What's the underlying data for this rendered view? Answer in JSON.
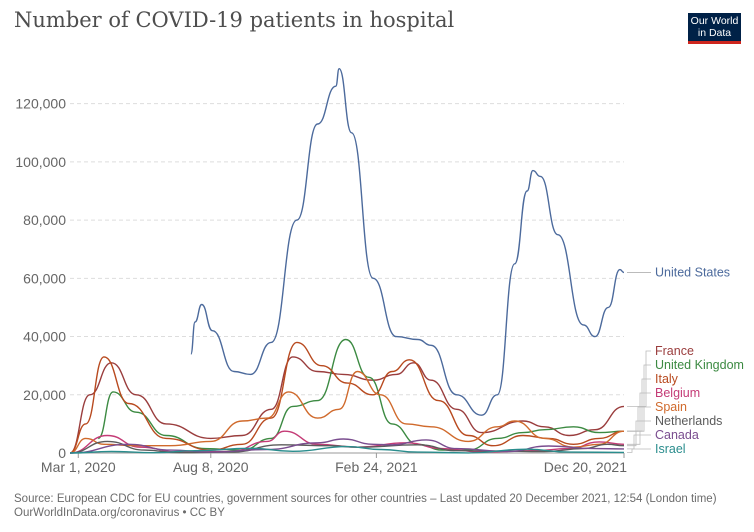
{
  "header": {
    "title": "Number of COVID-19 patients in hospital",
    "logo_line1": "Our World",
    "logo_line2": "in Data"
  },
  "footer": {
    "source": "Source: European CDC for EU countries, government sources for other countries – Last updated 20 December 2021, 12:54 (London time)",
    "url": "OurWorldInData.org/coronavirus • CC BY"
  },
  "chart_data": {
    "type": "line",
    "title": "Number of COVID-19 patients in hospital",
    "xlabel": "",
    "ylabel": "",
    "xlim": [
      "2020-02-20",
      "2021-12-20"
    ],
    "ylim": [
      0,
      135000
    ],
    "grid": true,
    "legend_placement": "right (labels at line ends)",
    "x_tick_labels": [
      "Mar 1, 2020",
      "Aug 8, 2020",
      "Feb 24, 2021",
      "Dec 20, 2021"
    ],
    "x_tick_dates": [
      "2020-03-01",
      "2020-08-08",
      "2021-02-24",
      "2021-12-20"
    ],
    "y_tick_labels": [
      "0",
      "20,000",
      "40,000",
      "60,000",
      "80,000",
      "100,000",
      "120,000"
    ],
    "y_tick_values": [
      0,
      20000,
      40000,
      60000,
      80000,
      100000,
      120000
    ],
    "series": [
      {
        "name": "United States",
        "color": "#4c6a9c",
        "x": [
          "2020-07-15",
          "2020-07-20",
          "2020-07-28",
          "2020-08-10",
          "2020-09-05",
          "2020-09-25",
          "2020-10-20",
          "2020-11-20",
          "2020-12-15",
          "2021-01-06",
          "2021-01-10",
          "2021-01-25",
          "2021-02-20",
          "2021-03-20",
          "2021-04-15",
          "2021-05-01",
          "2021-06-01",
          "2021-07-01",
          "2021-07-20",
          "2021-08-10",
          "2021-08-25",
          "2021-09-01",
          "2021-09-10",
          "2021-10-01",
          "2021-11-01",
          "2021-11-15",
          "2021-12-01",
          "2021-12-15",
          "2021-12-20"
        ],
        "y": [
          34000,
          45000,
          51000,
          42000,
          28000,
          27000,
          38000,
          80000,
          113000,
          126000,
          132000,
          110000,
          60000,
          40000,
          39000,
          37000,
          20000,
          13000,
          20000,
          65000,
          90000,
          97000,
          95000,
          75000,
          44000,
          40000,
          50000,
          63000,
          62000
        ]
      },
      {
        "name": "France",
        "color": "#9a3d3d",
        "x": [
          "2020-02-20",
          "2020-03-15",
          "2020-04-10",
          "2020-05-10",
          "2020-06-15",
          "2020-08-08",
          "2020-09-15",
          "2020-10-20",
          "2020-11-15",
          "2020-12-15",
          "2021-01-15",
          "2021-02-20",
          "2021-03-20",
          "2021-04-10",
          "2021-05-01",
          "2021-06-01",
          "2021-07-01",
          "2021-08-20",
          "2021-09-15",
          "2021-10-15",
          "2021-11-15",
          "2021-12-20"
        ],
        "y": [
          0,
          20000,
          31000,
          20000,
          10000,
          5000,
          6000,
          15000,
          33000,
          28000,
          27000,
          25000,
          27000,
          31000,
          25000,
          15000,
          7000,
          11000,
          9000,
          6000,
          8000,
          16000
        ]
      },
      {
        "name": "United Kingdom",
        "color": "#3c8a42",
        "x": [
          "2020-03-25",
          "2020-04-12",
          "2020-05-10",
          "2020-06-15",
          "2020-08-01",
          "2020-09-15",
          "2020-10-20",
          "2020-11-15",
          "2020-12-15",
          "2021-01-18",
          "2021-02-15",
          "2021-03-15",
          "2021-04-15",
          "2021-05-15",
          "2021-06-15",
          "2021-07-20",
          "2021-08-20",
          "2021-09-15",
          "2021-10-20",
          "2021-11-20",
          "2021-12-20"
        ],
        "y": [
          5000,
          21000,
          14000,
          6000,
          1500,
          1000,
          5000,
          16000,
          18000,
          39000,
          26000,
          10000,
          3000,
          1000,
          1000,
          5000,
          7000,
          8000,
          9000,
          7000,
          7500
        ]
      },
      {
        "name": "Italy",
        "color": "#b84a1f",
        "x": [
          "2020-02-20",
          "2020-03-10",
          "2020-04-01",
          "2020-05-01",
          "2020-06-15",
          "2020-08-08",
          "2020-09-15",
          "2020-10-20",
          "2020-11-20",
          "2020-12-20",
          "2021-01-20",
          "2021-02-20",
          "2021-03-15",
          "2021-04-05",
          "2021-05-10",
          "2021-06-15",
          "2021-07-15",
          "2021-08-20",
          "2021-09-20",
          "2021-10-20",
          "2021-11-20",
          "2021-12-20"
        ],
        "y": [
          0,
          10000,
          33000,
          17000,
          5000,
          1000,
          3000,
          12000,
          38000,
          30000,
          24000,
          20000,
          28000,
          32000,
          18000,
          6000,
          2500,
          6000,
          5000,
          3000,
          5000,
          7500
        ]
      },
      {
        "name": "Belgium",
        "color": "#c43b76",
        "x": [
          "2020-02-20",
          "2020-04-05",
          "2020-05-15",
          "2020-07-01",
          "2020-09-01",
          "2020-10-15",
          "2020-11-05",
          "2020-12-15",
          "2021-02-01",
          "2021-04-01",
          "2021-05-15",
          "2021-07-01",
          "2021-09-01",
          "2021-10-15",
          "2021-11-20",
          "2021-12-20"
        ],
        "y": [
          0,
          6000,
          2000,
          300,
          500,
          4000,
          7500,
          3000,
          2000,
          3500,
          1500,
          300,
          800,
          1500,
          3800,
          3000
        ]
      },
      {
        "name": "Spain",
        "color": "#d06a2c",
        "x": [
          "2020-02-20",
          "2020-03-10",
          "2020-04-01",
          "2020-05-10",
          "2020-06-20",
          "2020-08-08",
          "2020-09-15",
          "2020-10-15",
          "2020-11-10",
          "2020-12-15",
          "2021-01-10",
          "2021-02-01",
          "2021-03-01",
          "2021-04-01",
          "2021-05-01",
          "2021-06-15",
          "2021-07-20",
          "2021-08-10",
          "2021-09-15",
          "2021-10-20",
          "2021-11-20",
          "2021-12-20"
        ],
        "y": [
          0,
          5000,
          3000,
          2500,
          2500,
          4000,
          11000,
          12000,
          21000,
          12000,
          15000,
          28000,
          20000,
          10000,
          9000,
          4000,
          9000,
          11000,
          5000,
          2000,
          3000,
          7500
        ]
      },
      {
        "name": "Netherlands",
        "color": "#5b5b5b",
        "x": [
          "2020-02-20",
          "2020-04-05",
          "2020-05-20",
          "2020-07-01",
          "2020-09-01",
          "2020-11-01",
          "2021-01-01",
          "2021-02-01",
          "2021-04-15",
          "2021-06-01",
          "2021-07-15",
          "2021-09-15",
          "2021-11-01",
          "2021-11-30",
          "2021-12-20"
        ],
        "y": [
          0,
          4000,
          1000,
          100,
          300,
          2800,
          2500,
          2000,
          2800,
          800,
          700,
          500,
          1500,
          3000,
          2500
        ]
      },
      {
        "name": "Canada",
        "color": "#7a4d8f",
        "x": [
          "2020-02-20",
          "2020-05-01",
          "2020-06-20",
          "2020-08-08",
          "2020-10-15",
          "2020-12-15",
          "2021-01-15",
          "2021-02-20",
          "2021-03-15",
          "2021-04-25",
          "2021-06-01",
          "2021-08-01",
          "2021-09-20",
          "2021-11-15",
          "2021-12-20"
        ],
        "y": [
          0,
          3000,
          1000,
          300,
          1200,
          3500,
          4800,
          3000,
          2800,
          4500,
          1500,
          500,
          2400,
          1500,
          1400
        ]
      },
      {
        "name": "Israel",
        "color": "#2a8d8d",
        "x": [
          "2020-02-20",
          "2020-04-10",
          "2020-06-01",
          "2020-07-20",
          "2020-09-25",
          "2020-11-15",
          "2021-01-20",
          "2021-03-01",
          "2021-04-15",
          "2021-06-15",
          "2021-08-25",
          "2021-10-15",
          "2021-12-20"
        ],
        "y": [
          0,
          500,
          100,
          800,
          1600,
          600,
          2200,
          1200,
          300,
          30,
          1300,
          300,
          200
        ]
      }
    ]
  }
}
